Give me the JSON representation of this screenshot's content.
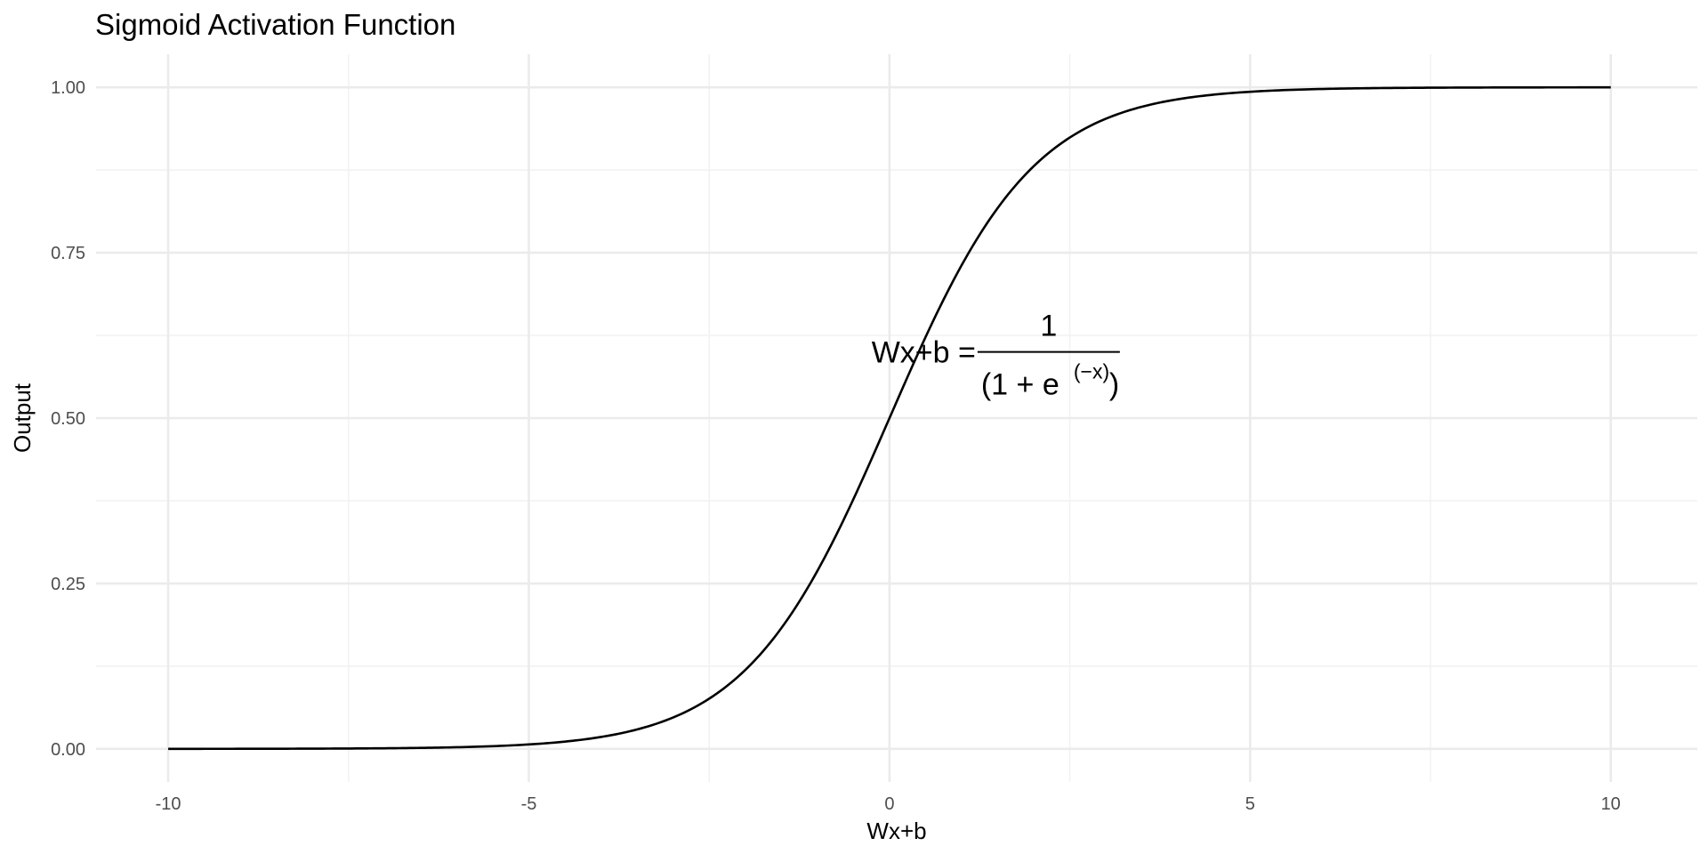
{
  "chart_data": {
    "type": "line",
    "title": "Sigmoid Activation Function",
    "xlabel": "Wx+b",
    "ylabel": "Output",
    "xlim": [
      -11,
      11.2
    ],
    "ylim": [
      -0.05,
      1.05
    ],
    "x_ticks": [
      -10,
      -5,
      0,
      5,
      10
    ],
    "x_tick_labels": [
      "-10",
      "-5",
      "0",
      "5",
      "10"
    ],
    "y_ticks": [
      0,
      0.25,
      0.5,
      0.75,
      1
    ],
    "y_tick_labels": [
      "0.00",
      "0.25",
      "0.50",
      "0.75",
      "1.00"
    ],
    "grid": true,
    "legend": "none",
    "line_color": "#000000",
    "grid_color": "#ebebeb",
    "series": [
      {
        "function": "sigmoid",
        "x": [
          -10,
          -9,
          -8,
          -7,
          -6,
          -5,
          -4,
          -3,
          -2.5,
          -2,
          -1.5,
          -1,
          -0.5,
          0,
          0.5,
          1,
          1.5,
          2,
          2.5,
          3,
          4,
          5,
          6,
          7,
          8,
          9,
          10
        ],
        "y": [
          4.54e-05,
          0.000123,
          0.000335,
          0.000911,
          0.00247,
          0.00669,
          0.018,
          0.0474,
          0.0759,
          0.1192,
          0.1824,
          0.2689,
          0.3775,
          0.5,
          0.6225,
          0.7311,
          0.8176,
          0.8808,
          0.9241,
          0.9526,
          0.982,
          0.9933,
          0.9975,
          0.9991,
          0.9997,
          0.9999,
          1.0
        ]
      }
    ],
    "annotation": {
      "lhs": "Wx+b =",
      "numerator": "1",
      "denominator_open": "(1 + e",
      "denominator_exponent": "(−x)",
      "denominator_close": ")",
      "x": 0.9,
      "y": 0.6
    }
  }
}
